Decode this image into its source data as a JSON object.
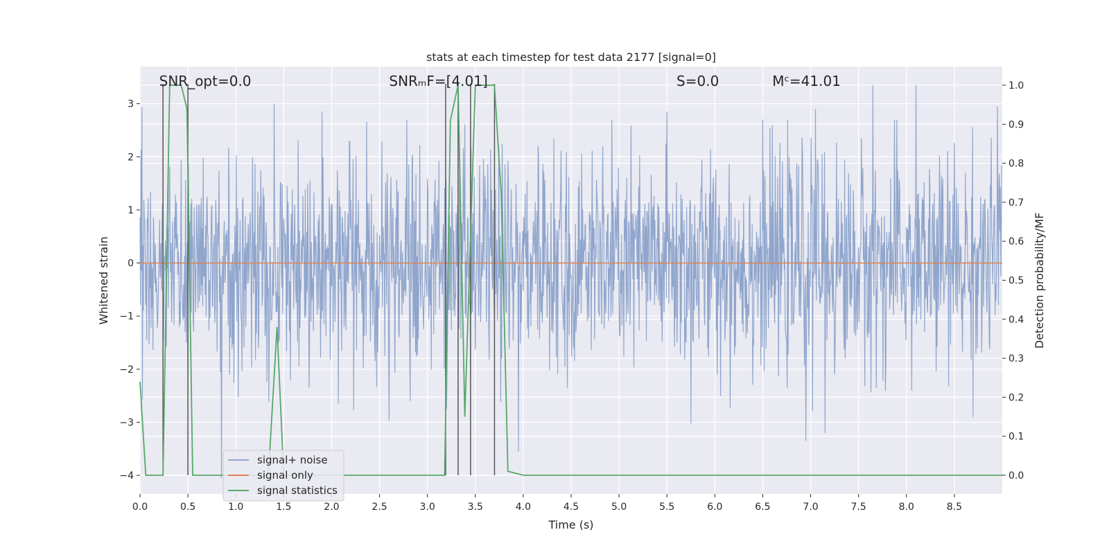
{
  "chart_data": {
    "type": "line",
    "title": "stats at each timestep for test data 2177 [signal=0]",
    "xlabel": "Time (s)",
    "ylabel": "Whitened strain",
    "y2label": "Detection probability/MF",
    "xlim": [
      0.0,
      9.0
    ],
    "ylim": [
      -4.35,
      3.7
    ],
    "y2lim": [
      -0.048,
      1.048
    ],
    "xticks": [
      0.0,
      0.5,
      1.0,
      1.5,
      2.0,
      2.5,
      3.0,
      3.5,
      4.0,
      4.5,
      5.0,
      5.5,
      6.0,
      6.5,
      7.0,
      7.5,
      8.0,
      8.5
    ],
    "xtick_labels": [
      "0.0",
      "0.5",
      "1.0",
      "1.5",
      "2.0",
      "2.5",
      "3.0",
      "3.5",
      "4.0",
      "4.5",
      "5.0",
      "5.5",
      "6.0",
      "6.5",
      "7.0",
      "7.5",
      "8.0",
      "8.5"
    ],
    "yticks": [
      3,
      2,
      1,
      0,
      -1,
      -2,
      -3,
      -4
    ],
    "ytick_labels": [
      "3",
      "2",
      "1",
      "0",
      "−1",
      "−2",
      "−3",
      "−4"
    ],
    "y2ticks": [
      1.0,
      0.9,
      0.8,
      0.7,
      0.6,
      0.5,
      0.4,
      0.3,
      0.2,
      0.1,
      0.0
    ],
    "y2tick_labels": [
      "1.0",
      "0.9",
      "0.8",
      "0.7",
      "0.6",
      "0.5",
      "0.4",
      "0.3",
      "0.2",
      "0.1",
      "0.0"
    ],
    "grid": true,
    "legend_position": "lower-left",
    "annotations": [
      {
        "label": "snr-opt-annotation",
        "text": "SNR_opt=0.0",
        "x": 0.2
      },
      {
        "label": "snr-mf-annotation",
        "text": "SNRₘF=[4.01]",
        "x": 2.6
      },
      {
        "label": "s-annotation",
        "text": "S=0.0",
        "x": 5.6
      },
      {
        "label": "mc-annotation",
        "text": "Mᶜ=41.01",
        "x": 6.6
      }
    ],
    "vertical_markers": [
      0.24,
      0.5,
      3.19,
      3.32,
      3.45,
      3.7
    ],
    "series": [
      {
        "name": "signal+ noise",
        "color": "#8fa5cc",
        "axis": "left",
        "noise": {
          "n_samples": 1800,
          "std": 1.0,
          "seed": 2177
        },
        "peaks": [
          [
            0.02,
            2.93
          ],
          [
            0.5,
            -2.1
          ],
          [
            0.85,
            -4.05
          ],
          [
            1.4,
            3.0
          ],
          [
            1.9,
            2.85
          ],
          [
            2.6,
            -2.97
          ],
          [
            3.2,
            -2.75
          ],
          [
            3.95,
            -3.55
          ],
          [
            5.5,
            2.85
          ],
          [
            5.75,
            -3.02
          ],
          [
            6.95,
            -3.35
          ],
          [
            7.05,
            2.9
          ],
          [
            7.15,
            -3.2
          ],
          [
            7.65,
            3.35
          ],
          [
            8.1,
            3.35
          ],
          [
            8.95,
            2.95
          ]
        ]
      },
      {
        "name": "signal only",
        "color": "#dd8452",
        "axis": "left",
        "constant": 0.0
      },
      {
        "name": "signal statistics",
        "color": "#55a868",
        "axis": "right",
        "points": [
          [
            0.0,
            0.24
          ],
          [
            0.06,
            0.0
          ],
          [
            0.24,
            0.0
          ],
          [
            0.31,
            1.0
          ],
          [
            0.43,
            1.0
          ],
          [
            0.49,
            0.94
          ],
          [
            0.55,
            0.0
          ],
          [
            1.34,
            0.0
          ],
          [
            1.43,
            0.38
          ],
          [
            1.5,
            0.0
          ],
          [
            3.18,
            0.0
          ],
          [
            3.24,
            0.91
          ],
          [
            3.32,
            1.0
          ],
          [
            3.39,
            0.15
          ],
          [
            3.5,
            1.0
          ],
          [
            3.7,
            1.0
          ],
          [
            3.77,
            0.72
          ],
          [
            3.84,
            0.01
          ],
          [
            4.0,
            0.0
          ],
          [
            9.0,
            0.0
          ]
        ]
      }
    ]
  }
}
